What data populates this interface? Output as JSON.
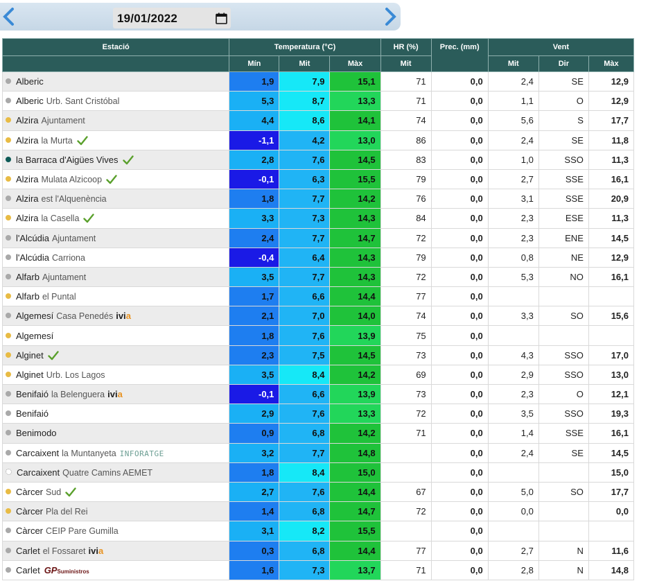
{
  "header": {
    "date": "19/01/2022",
    "prev_icon": "chevron-left-icon",
    "next_icon": "chevron-right-icon",
    "calendar_icon": "calendar-icon"
  },
  "colors": {
    "header_bg": "#2b5c5a",
    "min_deep": "#1a1ae6",
    "min_mid": "#1e7ef0",
    "min_light": "#1ab0f5",
    "mit_cyan": "#16e8f7",
    "mit_blue": "#20b4f5",
    "max_green": "#1fc23a",
    "max_light": "#22d65a"
  },
  "table": {
    "headers": {
      "station": "Estació",
      "temperature": "Temperatura (°C)",
      "hr": "HR (%)",
      "prec": "Prec. (mm)",
      "wind": "Vent",
      "min": "Mín",
      "mit": "Mit",
      "max": "Màx",
      "hr_mit": "Mit",
      "wind_mit": "Mit",
      "wind_dir": "Dir",
      "wind_max": "Màx"
    },
    "rows": [
      {
        "dot": "grey",
        "name": "Alberic",
        "sub": "",
        "badge": "",
        "tmin": "1,9",
        "tmit": "7,9",
        "tmax": "15,1",
        "hr": "71",
        "prec": "0,0",
        "wmit": "2,4",
        "wdir": "SE",
        "wmax": "12,9"
      },
      {
        "dot": "grey",
        "name": "Alberic",
        "sub": "Urb. Sant Cristóbal",
        "badge": "",
        "tmin": "5,3",
        "tmit": "8,7",
        "tmax": "13,3",
        "hr": "71",
        "prec": "0,0",
        "wmit": "1,1",
        "wdir": "O",
        "wmax": "12,9"
      },
      {
        "dot": "yellow",
        "name": "Alzira",
        "sub": "Ajuntament",
        "badge": "",
        "tmin": "4,4",
        "tmit": "8,6",
        "tmax": "14,1",
        "hr": "74",
        "prec": "0,0",
        "wmit": "5,6",
        "wdir": "S",
        "wmax": "17,7"
      },
      {
        "dot": "yellow",
        "name": "Alzira",
        "sub": "la Murta",
        "badge": "check",
        "tmin": "-1,1",
        "tmit": "4,2",
        "tmax": "13,0",
        "hr": "86",
        "prec": "0,0",
        "wmit": "2,4",
        "wdir": "SE",
        "wmax": "11,8"
      },
      {
        "dot": "teal",
        "name": "la Barraca d'Aigües Vives",
        "sub": "",
        "badge": "check",
        "tmin": "2,8",
        "tmit": "7,6",
        "tmax": "14,5",
        "hr": "83",
        "prec": "0,0",
        "wmit": "1,0",
        "wdir": "SSO",
        "wmax": "11,3"
      },
      {
        "dot": "yellow",
        "name": "Alzira",
        "sub": "Mulata Alzicoop",
        "badge": "check",
        "tmin": "-0,1",
        "tmit": "6,3",
        "tmax": "15,5",
        "hr": "79",
        "prec": "0,0",
        "wmit": "2,7",
        "wdir": "SSE",
        "wmax": "16,1"
      },
      {
        "dot": "grey",
        "name": "Alzira",
        "sub": "est l'Alquenència",
        "badge": "",
        "tmin": "1,8",
        "tmit": "7,7",
        "tmax": "14,2",
        "hr": "76",
        "prec": "0,0",
        "wmit": "3,1",
        "wdir": "SSE",
        "wmax": "20,9"
      },
      {
        "dot": "yellow",
        "name": "Alzira",
        "sub": "la Casella",
        "badge": "check",
        "tmin": "3,3",
        "tmit": "7,3",
        "tmax": "14,3",
        "hr": "84",
        "prec": "0,0",
        "wmit": "2,3",
        "wdir": "ESE",
        "wmax": "11,3"
      },
      {
        "dot": "grey",
        "name": "l'Alcúdia",
        "sub": "Ajuntament",
        "badge": "",
        "tmin": "2,4",
        "tmit": "7,7",
        "tmax": "14,7",
        "hr": "72",
        "prec": "0,0",
        "wmit": "2,3",
        "wdir": "ENE",
        "wmax": "14,5"
      },
      {
        "dot": "grey",
        "name": "l'Alcúdia",
        "sub": "Carriona",
        "badge": "",
        "tmin": "-0,4",
        "tmit": "6,4",
        "tmax": "14,3",
        "hr": "79",
        "prec": "0,0",
        "wmit": "0,8",
        "wdir": "NE",
        "wmax": "12,9"
      },
      {
        "dot": "grey",
        "name": "Alfarb",
        "sub": "Ajuntament",
        "badge": "",
        "tmin": "3,5",
        "tmit": "7,7",
        "tmax": "14,3",
        "hr": "72",
        "prec": "0,0",
        "wmit": "5,3",
        "wdir": "NO",
        "wmax": "16,1"
      },
      {
        "dot": "yellow",
        "name": "Alfarb",
        "sub": "el Puntal",
        "badge": "",
        "tmin": "1,7",
        "tmit": "6,6",
        "tmax": "14,4",
        "hr": "77",
        "prec": "0,0",
        "wmit": "",
        "wdir": "",
        "wmax": ""
      },
      {
        "dot": "grey",
        "name": "Algemesí",
        "sub": "Casa Penedés",
        "badge": "ivia",
        "tmin": "2,1",
        "tmit": "7,0",
        "tmax": "14,0",
        "hr": "74",
        "prec": "0,0",
        "wmit": "3,3",
        "wdir": "SO",
        "wmax": "15,6"
      },
      {
        "dot": "yellow",
        "name": "Algemesí",
        "sub": "",
        "badge": "",
        "tmin": "1,8",
        "tmit": "7,6",
        "tmax": "13,9",
        "hr": "75",
        "prec": "0,0",
        "wmit": "",
        "wdir": "",
        "wmax": ""
      },
      {
        "dot": "yellow",
        "name": "Alginet",
        "sub": "",
        "badge": "check",
        "tmin": "2,3",
        "tmit": "7,5",
        "tmax": "14,5",
        "hr": "73",
        "prec": "0,0",
        "wmit": "4,3",
        "wdir": "SSO",
        "wmax": "17,0"
      },
      {
        "dot": "yellow",
        "name": "Alginet",
        "sub": "Urb. Los Lagos",
        "badge": "",
        "tmin": "3,5",
        "tmit": "8,4",
        "tmax": "14,2",
        "hr": "69",
        "prec": "0,0",
        "wmit": "2,9",
        "wdir": "SSO",
        "wmax": "13,0"
      },
      {
        "dot": "grey",
        "name": "Benifaió",
        "sub": "la Belenguera",
        "badge": "ivia",
        "tmin": "-0,1",
        "tmit": "6,6",
        "tmax": "13,9",
        "hr": "73",
        "prec": "0,0",
        "wmit": "2,3",
        "wdir": "O",
        "wmax": "12,1"
      },
      {
        "dot": "grey",
        "name": "Benifaió",
        "sub": "",
        "badge": "",
        "tmin": "2,9",
        "tmit": "7,6",
        "tmax": "13,3",
        "hr": "72",
        "prec": "0,0",
        "wmit": "3,5",
        "wdir": "SSO",
        "wmax": "19,3"
      },
      {
        "dot": "grey",
        "name": "Benimodo",
        "sub": "",
        "badge": "",
        "tmin": "0,9",
        "tmit": "6,8",
        "tmax": "14,2",
        "hr": "71",
        "prec": "0,0",
        "wmit": "1,4",
        "wdir": "SSE",
        "wmax": "16,1"
      },
      {
        "dot": "grey",
        "name": "Carcaixent",
        "sub": "la Muntanyeta",
        "badge": "inforatge",
        "tmin": "3,2",
        "tmit": "7,7",
        "tmax": "14,8",
        "hr": "",
        "prec": "0,0",
        "wmit": "2,4",
        "wdir": "SE",
        "wmax": "14,5"
      },
      {
        "dot": "empty",
        "name": "Carcaixent",
        "sub": "Quatre Camins AEMET",
        "badge": "",
        "tmin": "1,8",
        "tmit": "8,4",
        "tmax": "15,0",
        "hr": "",
        "prec": "0,0",
        "wmit": "",
        "wdir": "",
        "wmax": "15,0"
      },
      {
        "dot": "yellow",
        "name": "Càrcer",
        "sub": "Sud",
        "badge": "check",
        "tmin": "2,7",
        "tmit": "7,6",
        "tmax": "14,4",
        "hr": "67",
        "prec": "0,0",
        "wmit": "5,0",
        "wdir": "SO",
        "wmax": "17,7"
      },
      {
        "dot": "yellow",
        "name": "Càrcer",
        "sub": "Pla del Rei",
        "badge": "",
        "tmin": "1,4",
        "tmit": "6,8",
        "tmax": "14,7",
        "hr": "72",
        "prec": "0,0",
        "wmit": "0,0",
        "wdir": "",
        "wmax": "0,0"
      },
      {
        "dot": "grey",
        "name": "Càrcer",
        "sub": "CEIP Pare Gumilla",
        "badge": "",
        "tmin": "3,1",
        "tmit": "8,2",
        "tmax": "15,5",
        "hr": "",
        "prec": "0,0",
        "wmit": "",
        "wdir": "",
        "wmax": ""
      },
      {
        "dot": "grey",
        "name": "Carlet",
        "sub": "el Fossaret",
        "badge": "ivia",
        "tmin": "0,3",
        "tmit": "6,8",
        "tmax": "14,4",
        "hr": "77",
        "prec": "0,0",
        "wmit": "2,7",
        "wdir": "N",
        "wmax": "11,6"
      },
      {
        "dot": "grey",
        "name": "Carlet",
        "sub": "",
        "badge": "gp",
        "tmin": "1,6",
        "tmit": "7,3",
        "tmax": "13,7",
        "hr": "71",
        "prec": "0,0",
        "wmit": "2,8",
        "wdir": "N",
        "wmax": "14,8"
      }
    ],
    "badge_text": {
      "ivia_main": "ivi",
      "ivia_end": "a",
      "inforatge": "INFORATGE",
      "gp_main": "GP",
      "gp_small": "Suministros"
    }
  }
}
